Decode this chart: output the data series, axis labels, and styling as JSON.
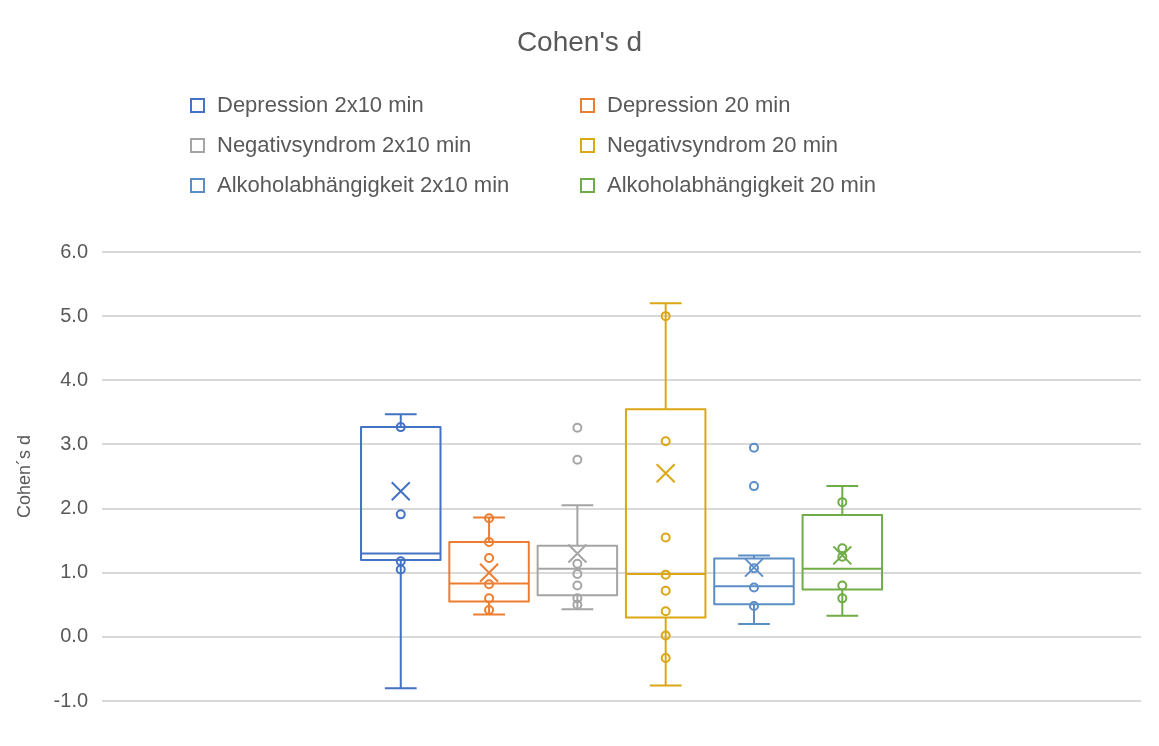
{
  "chart_data": {
    "type": "box",
    "title": "Cohen's d",
    "ylabel": "Cohen´s d",
    "categories": [
      null
    ],
    "ylim": [
      -1,
      6
    ],
    "yticks": [
      {
        "value": -1,
        "label": "-1.0"
      },
      {
        "value": 0,
        "label": "0.0"
      },
      {
        "value": 1,
        "label": "1.0"
      },
      {
        "value": 2,
        "label": "2.0"
      },
      {
        "value": 3,
        "label": "3.0"
      },
      {
        "value": 4,
        "label": "4.0"
      },
      {
        "value": 5,
        "label": "5.0"
      },
      {
        "value": 6,
        "label": "6.0"
      }
    ],
    "grid": "y",
    "legend": "top",
    "tick_labels": "y",
    "series": [
      {
        "name": "Depression 2x10 min",
        "color": "#4472c4",
        "boxes": [
          {
            "low": -0.8,
            "q1": 1.2,
            "median": 1.3,
            "q3": 3.27,
            "high": 3.47,
            "mean": 2.27
          }
        ]
      },
      {
        "name": "Depression 20 min",
        "color": "#ed7d31",
        "boxes": [
          {
            "low": 0.35,
            "q1": 0.55,
            "median": 0.83,
            "q3": 1.48,
            "high": 1.86,
            "mean": 1.0
          }
        ]
      },
      {
        "name": "Negativsyndrom 2x10 min",
        "color": "#a5a5a5",
        "boxes": [
          {
            "low": 0.43,
            "q1": 0.65,
            "median": 1.06,
            "q3": 1.42,
            "high": 2.05,
            "mean": 1.3,
            "outliers": [
              3.26,
              2.76
            ]
          }
        ]
      },
      {
        "name": "Negativsyndrom 20 min",
        "color": "#dca715",
        "boxes": [
          {
            "low": -0.76,
            "q1": 0.3,
            "median": 0.98,
            "q3": 3.55,
            "high": 5.2,
            "mean": 2.55
          }
        ]
      },
      {
        "name": "Alkoholabhängigkeit 2x10 min",
        "color": "#5b8ec6",
        "boxes": [
          {
            "low": 0.2,
            "q1": 0.51,
            "median": 0.79,
            "q3": 1.22,
            "high": 1.27,
            "mean": 1.08,
            "outliers": [
              2.95,
              2.35
            ]
          }
        ]
      },
      {
        "name": "Alkoholabhängigkeit 20 min",
        "color": "#70ad47",
        "boxes": [
          {
            "low": 0.33,
            "q1": 0.74,
            "median": 1.06,
            "q3": 1.9,
            "high": 2.35,
            "mean": 1.27
          }
        ]
      },
      {
        "type": "scatter",
        "color": "#4472c4",
        "x": [
          null,
          null,
          null,
          null
        ],
        "values": [
          3.27,
          1.91,
          1.18,
          1.05
        ]
      },
      {
        "type": "scatter",
        "color": "#ed7d31",
        "x": [
          null,
          null,
          null,
          null,
          null,
          null
        ],
        "values": [
          1.85,
          1.48,
          1.23,
          0.82,
          0.6,
          0.42
        ]
      },
      {
        "type": "scatter",
        "color": "#a5a5a5",
        "x": [
          null,
          null,
          null,
          null,
          null
        ],
        "values": [
          1.14,
          0.98,
          0.8,
          0.6,
          0.5
        ]
      },
      {
        "type": "scatter",
        "color": "#dca715",
        "x": [
          null,
          null,
          null,
          null,
          null,
          null,
          null,
          null
        ],
        "values": [
          5.0,
          3.05,
          1.55,
          0.97,
          0.72,
          0.4,
          0.02,
          -0.33
        ]
      },
      {
        "type": "scatter",
        "color": "#5b8ec6",
        "x": [
          null,
          null,
          null
        ],
        "values": [
          1.07,
          0.77,
          0.48
        ]
      },
      {
        "type": "scatter",
        "color": "#70ad47",
        "x": [
          null,
          null,
          null,
          null,
          null
        ],
        "values": [
          2.1,
          1.38,
          1.25,
          0.8,
          0.6
        ]
      }
    ]
  }
}
